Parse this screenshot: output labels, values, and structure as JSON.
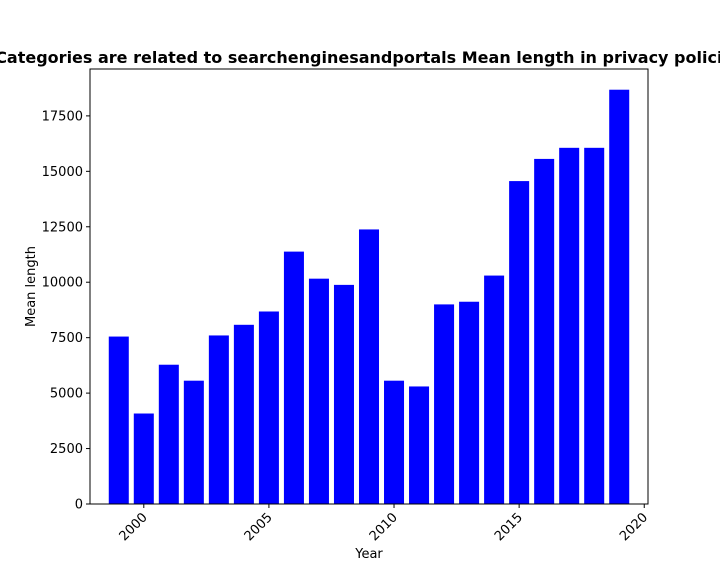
{
  "chart_data": {
    "type": "bar",
    "title": "Categories are related to searchenginesandportals Mean length in privacy policies",
    "xlabel": "Year",
    "ylabel": "Mean length",
    "x": [
      1999,
      2000,
      2001,
      2002,
      2003,
      2004,
      2005,
      2006,
      2007,
      2008,
      2009,
      2010,
      2011,
      2012,
      2013,
      2014,
      2015,
      2016,
      2017,
      2018,
      2019
    ],
    "values": [
      7550,
      4080,
      6280,
      5560,
      7600,
      8080,
      8680,
      11380,
      10160,
      9880,
      12380,
      5560,
      5300,
      9000,
      9120,
      10300,
      14560,
      15560,
      16060,
      16060,
      18680
    ],
    "xlim": [
      1997.85,
      2020.15
    ],
    "ylim": [
      0,
      19614
    ],
    "xticks": [
      2000,
      2005,
      2010,
      2015,
      2020
    ],
    "yticks": [
      0,
      2500,
      5000,
      7500,
      10000,
      12500,
      15000,
      17500
    ],
    "bar_color": "#0000ff",
    "grid": false
  }
}
